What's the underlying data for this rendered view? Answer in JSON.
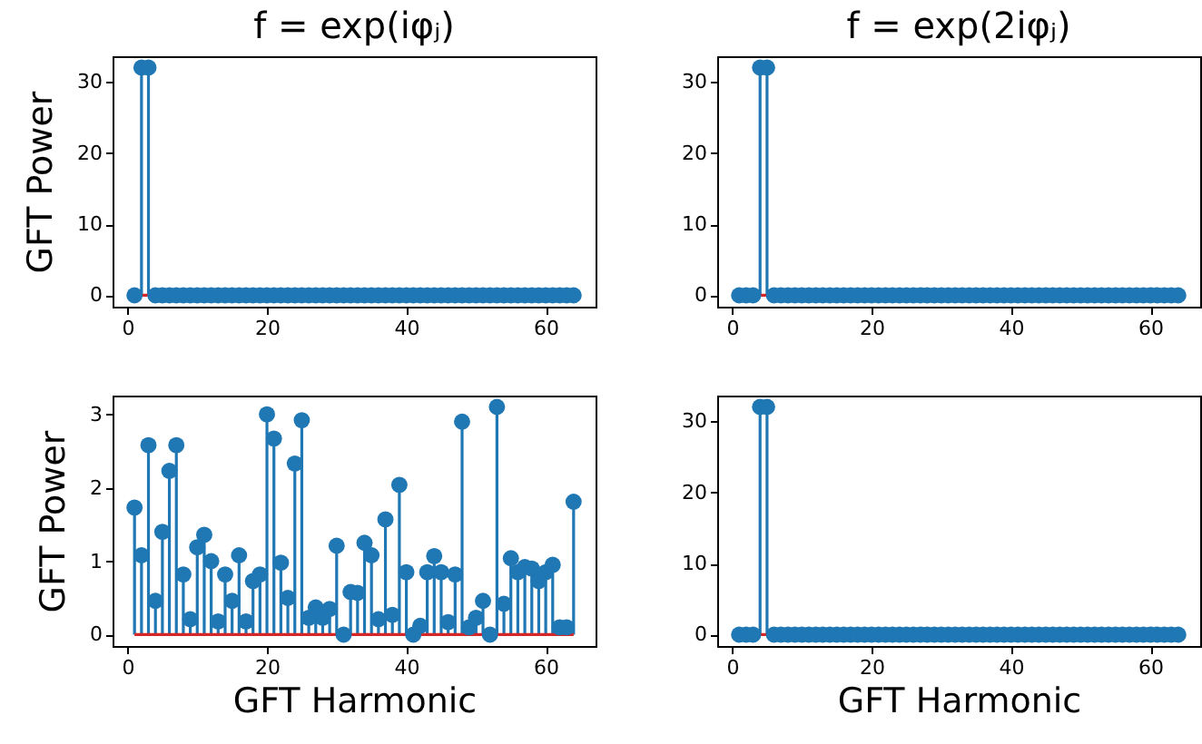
{
  "chart_data": [
    {
      "type": "lollipop",
      "title": "f = exp(iφⱼ)",
      "ylabel": "GFT Power",
      "x": [
        1,
        2,
        3,
        4,
        5,
        6,
        7,
        8,
        9,
        10,
        11,
        12,
        13,
        14,
        15,
        16,
        17,
        18,
        19,
        20,
        21,
        22,
        23,
        24,
        25,
        26,
        27,
        28,
        29,
        30,
        31,
        32,
        33,
        34,
        35,
        36,
        37,
        38,
        39,
        40,
        41,
        42,
        43,
        44,
        45,
        46,
        47,
        48,
        49,
        50,
        51,
        52,
        53,
        54,
        55,
        56,
        57,
        58,
        59,
        60,
        61,
        62,
        63,
        64
      ],
      "values": [
        0,
        32,
        32,
        0,
        0,
        0,
        0,
        0,
        0,
        0,
        0,
        0,
        0,
        0,
        0,
        0,
        0,
        0,
        0,
        0,
        0,
        0,
        0,
        0,
        0,
        0,
        0,
        0,
        0,
        0,
        0,
        0,
        0,
        0,
        0,
        0,
        0,
        0,
        0,
        0,
        0,
        0,
        0,
        0,
        0,
        0,
        0,
        0,
        0,
        0,
        0,
        0,
        0,
        0,
        0,
        0,
        0,
        0,
        0,
        0,
        0,
        0,
        0,
        0
      ],
      "color": "#1f77b4",
      "marker": "circle",
      "grid": false,
      "xlim": [
        -2.15,
        67.15
      ],
      "ylim": [
        -1.6,
        33.6
      ],
      "xticks": [
        0,
        20,
        40,
        60
      ],
      "yticks": [
        0,
        10,
        20,
        30
      ],
      "ref_lines": [
        {
          "axis": "y",
          "value": 0,
          "color": "#d62728"
        }
      ]
    },
    {
      "type": "lollipop",
      "title": "f = exp(2iφⱼ)",
      "x": [
        1,
        2,
        3,
        4,
        5,
        6,
        7,
        8,
        9,
        10,
        11,
        12,
        13,
        14,
        15,
        16,
        17,
        18,
        19,
        20,
        21,
        22,
        23,
        24,
        25,
        26,
        27,
        28,
        29,
        30,
        31,
        32,
        33,
        34,
        35,
        36,
        37,
        38,
        39,
        40,
        41,
        42,
        43,
        44,
        45,
        46,
        47,
        48,
        49,
        50,
        51,
        52,
        53,
        54,
        55,
        56,
        57,
        58,
        59,
        60,
        61,
        62,
        63,
        64
      ],
      "values": [
        0,
        0,
        0,
        32,
        32,
        0,
        0,
        0,
        0,
        0,
        0,
        0,
        0,
        0,
        0,
        0,
        0,
        0,
        0,
        0,
        0,
        0,
        0,
        0,
        0,
        0,
        0,
        0,
        0,
        0,
        0,
        0,
        0,
        0,
        0,
        0,
        0,
        0,
        0,
        0,
        0,
        0,
        0,
        0,
        0,
        0,
        0,
        0,
        0,
        0,
        0,
        0,
        0,
        0,
        0,
        0,
        0,
        0,
        0,
        0,
        0,
        0,
        0,
        0
      ],
      "color": "#1f77b4",
      "marker": "circle",
      "grid": false,
      "xlim": [
        -2.15,
        67.15
      ],
      "ylim": [
        -1.6,
        33.6
      ],
      "xticks": [
        0,
        20,
        40,
        60
      ],
      "yticks": [
        0,
        10,
        20,
        30
      ],
      "ref_lines": [
        {
          "axis": "y",
          "value": 0,
          "color": "#d62728"
        }
      ]
    },
    {
      "type": "lollipop",
      "xlabel": "GFT Harmonic",
      "ylabel": "GFT Power",
      "x": [
        1,
        2,
        3,
        4,
        5,
        6,
        7,
        8,
        9,
        10,
        11,
        12,
        13,
        14,
        15,
        16,
        17,
        18,
        19,
        20,
        21,
        22,
        23,
        24,
        25,
        26,
        27,
        28,
        29,
        30,
        31,
        32,
        33,
        34,
        35,
        36,
        37,
        38,
        39,
        40,
        41,
        42,
        43,
        44,
        45,
        46,
        47,
        48,
        49,
        50,
        51,
        52,
        53,
        54,
        55,
        56,
        57,
        58,
        59,
        60,
        61,
        62,
        63,
        64
      ],
      "values": [
        1.73,
        1.08,
        2.58,
        0.46,
        1.4,
        2.23,
        2.58,
        0.82,
        0.21,
        1.19,
        1.36,
        1.0,
        0.18,
        0.82,
        0.46,
        1.08,
        0.18,
        0.73,
        0.82,
        3.0,
        2.67,
        0.98,
        0.5,
        2.33,
        2.92,
        0.23,
        0.37,
        0.23,
        0.35,
        1.21,
        0.0,
        0.58,
        0.57,
        1.25,
        1.08,
        0.21,
        1.57,
        0.27,
        2.04,
        0.85,
        0.0,
        0.12,
        0.85,
        1.07,
        0.85,
        0.17,
        0.82,
        2.9,
        0.1,
        0.23,
        0.46,
        0.0,
        3.1,
        0.42,
        1.04,
        0.85,
        0.92,
        0.9,
        0.73,
        0.85,
        0.95,
        0.1,
        0.1,
        1.81
      ],
      "color": "#1f77b4",
      "marker": "circle",
      "grid": false,
      "xlim": [
        -2.15,
        67.15
      ],
      "ylim": [
        -0.155,
        3.255
      ],
      "xticks": [
        0,
        20,
        40,
        60
      ],
      "yticks": [
        0,
        1,
        2,
        3
      ],
      "ref_lines": [
        {
          "axis": "y",
          "value": 0,
          "color": "#d62728"
        }
      ]
    },
    {
      "type": "lollipop",
      "xlabel": "GFT Harmonic",
      "x": [
        1,
        2,
        3,
        4,
        5,
        6,
        7,
        8,
        9,
        10,
        11,
        12,
        13,
        14,
        15,
        16,
        17,
        18,
        19,
        20,
        21,
        22,
        23,
        24,
        25,
        26,
        27,
        28,
        29,
        30,
        31,
        32,
        33,
        34,
        35,
        36,
        37,
        38,
        39,
        40,
        41,
        42,
        43,
        44,
        45,
        46,
        47,
        48,
        49,
        50,
        51,
        52,
        53,
        54,
        55,
        56,
        57,
        58,
        59,
        60,
        61,
        62,
        63,
        64
      ],
      "values": [
        0,
        0,
        0,
        32,
        32,
        0,
        0,
        0,
        0,
        0,
        0,
        0,
        0,
        0,
        0,
        0,
        0,
        0,
        0,
        0,
        0,
        0,
        0,
        0,
        0,
        0,
        0,
        0,
        0,
        0,
        0,
        0,
        0,
        0,
        0,
        0,
        0,
        0,
        0,
        0,
        0,
        0,
        0,
        0,
        0,
        0,
        0,
        0,
        0,
        0,
        0,
        0,
        0,
        0,
        0,
        0,
        0,
        0,
        0,
        0,
        0,
        0,
        0,
        0
      ],
      "color": "#1f77b4",
      "marker": "circle",
      "grid": false,
      "xlim": [
        -2.15,
        67.15
      ],
      "ylim": [
        -1.6,
        33.6
      ],
      "xticks": [
        0,
        20,
        40,
        60
      ],
      "yticks": [
        0,
        10,
        20,
        30
      ],
      "ref_lines": [
        {
          "axis": "y",
          "value": 0,
          "color": "#d62728"
        }
      ]
    }
  ]
}
